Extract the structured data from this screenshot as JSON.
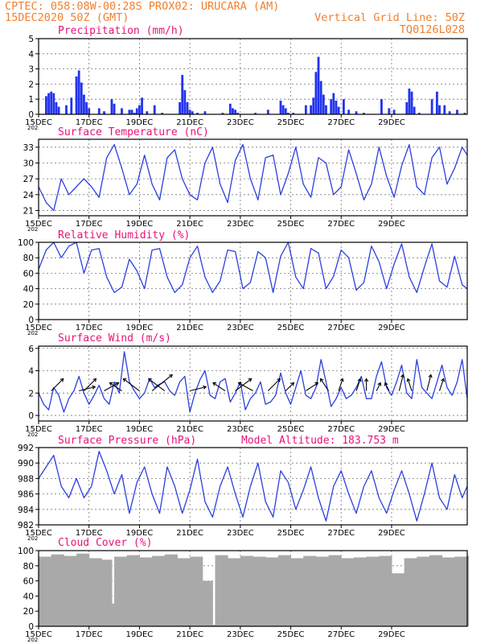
{
  "header": {
    "line1_left": "CPTEC:   058:08W-00:28S   PROX02: URUCARA (AM)",
    "line2_left": "15DEC2020 50Z (GMT)",
    "line2_right": "Vertical Grid Line: 50Z",
    "line3_right": "TQ0126L028"
  },
  "panels": {
    "precip": {
      "title": "Precipitation (mm/h)"
    },
    "temp": {
      "title": "Surface Temperature (nC)"
    },
    "rh": {
      "title": "Relative Humidity (%)"
    },
    "wind": {
      "title": "Surface Wind (m/s)"
    },
    "pressure": {
      "title": "Surface Pressure (hPa)",
      "extra": "Model Altitude: 183.753 m"
    },
    "cloud": {
      "title": "Cloud Cover (%)"
    }
  },
  "x_axis": {
    "tick_labels": [
      "15DEC",
      "17DEC",
      "19DEC",
      "21DEC",
      "23DEC",
      "25DEC",
      "27DEC",
      "29DEC"
    ],
    "partial_year_label": "202"
  },
  "chart_data": [
    {
      "id": "precip",
      "type": "bar",
      "title": "Precipitation (mm/h)",
      "x_unit": "days since 15DEC",
      "ylim": [
        0,
        5
      ],
      "yticks": [
        0,
        1,
        2,
        3,
        4,
        5
      ],
      "x": [
        0.3,
        0.4,
        0.5,
        0.6,
        0.7,
        0.8,
        1.1,
        1.3,
        1.5,
        1.6,
        1.7,
        1.8,
        1.9,
        2.0,
        2.4,
        2.6,
        2.9,
        3.0,
        3.3,
        3.6,
        3.7,
        3.8,
        3.9,
        4.0,
        4.1,
        4.3,
        4.6,
        4.9,
        5.6,
        5.7,
        5.8,
        5.9,
        6.0,
        6.1,
        6.3,
        6.6,
        7.3,
        7.6,
        7.7,
        7.8,
        7.9,
        8.6,
        9.1,
        9.6,
        9.7,
        9.8,
        9.9,
        10.1,
        10.6,
        10.8,
        10.9,
        11.0,
        11.1,
        11.2,
        11.3,
        11.4,
        11.6,
        11.7,
        11.8,
        11.9,
        12.1,
        12.3,
        12.6,
        12.9,
        13.6,
        13.9,
        14.1,
        14.6,
        14.7,
        14.8,
        14.9,
        15.1,
        15.6,
        15.8,
        15.9,
        16.1,
        16.3,
        16.6,
        16.9
      ],
      "values": [
        1.2,
        1.4,
        1.5,
        1.4,
        0.8,
        0.5,
        0.6,
        1.1,
        2.5,
        2.9,
        2.1,
        1.3,
        0.8,
        0.4,
        0.4,
        0.2,
        1.0,
        0.7,
        0.4,
        0.3,
        0.3,
        0.1,
        0.4,
        0.6,
        1.1,
        0.2,
        0.6,
        0.1,
        0.8,
        2.6,
        1.6,
        0.8,
        0.3,
        0.2,
        0.1,
        0.2,
        0.1,
        0.7,
        0.4,
        0.3,
        0.1,
        0.1,
        0.3,
        0.9,
        0.6,
        0.4,
        0.1,
        0.1,
        0.6,
        0.6,
        1.1,
        2.8,
        3.8,
        2.2,
        1.3,
        0.6,
        1.0,
        1.4,
        0.9,
        0.5,
        1.0,
        0.3,
        0.2,
        0.1,
        1.0,
        0.4,
        0.3,
        0.8,
        1.7,
        1.5,
        0.5,
        0.1,
        1.0,
        1.5,
        0.6,
        0.6,
        0.2,
        0.3,
        0.1
      ]
    },
    {
      "id": "temp",
      "type": "line",
      "title": "Surface Temperature (nC)",
      "x_unit": "days since 15DEC",
      "ylim": [
        20,
        34.5
      ],
      "yticks": [
        21,
        24,
        27,
        30,
        33
      ],
      "x": [
        0,
        0.3,
        0.6,
        0.9,
        1.2,
        1.5,
        1.8,
        2.1,
        2.4,
        2.7,
        3.0,
        3.3,
        3.6,
        3.9,
        4.2,
        4.5,
        4.8,
        5.1,
        5.4,
        5.7,
        6.0,
        6.3,
        6.6,
        6.9,
        7.2,
        7.5,
        7.8,
        8.1,
        8.4,
        8.7,
        9.0,
        9.3,
        9.6,
        9.9,
        10.2,
        10.5,
        10.8,
        11.1,
        11.4,
        11.7,
        12.0,
        12.3,
        12.6,
        12.9,
        13.2,
        13.5,
        13.8,
        14.1,
        14.4,
        14.7,
        15.0,
        15.3,
        15.6,
        15.9,
        16.2,
        16.5,
        16.8,
        17.0
      ],
      "values": [
        25.5,
        22.5,
        21.0,
        27.0,
        24.0,
        25.5,
        27.0,
        25.5,
        23.5,
        31.0,
        33.5,
        29.0,
        24.0,
        26.0,
        31.5,
        26.0,
        23.0,
        31.0,
        32.5,
        27.0,
        24.0,
        23.0,
        30.0,
        33.0,
        26.0,
        22.5,
        30.5,
        33.5,
        27.0,
        23.0,
        31.0,
        31.5,
        24.0,
        28.0,
        33.0,
        26.0,
        23.5,
        31.0,
        30.0,
        24.0,
        25.5,
        32.5,
        28.0,
        23.0,
        26.0,
        33.0,
        27.5,
        23.5,
        29.5,
        33.5,
        25.5,
        24.0,
        31.0,
        33.0,
        26.0,
        29.0,
        33.0,
        31.5
      ]
    },
    {
      "id": "rh",
      "type": "line",
      "title": "Relative Humidity (%)",
      "x_unit": "days since 15DEC",
      "ylim": [
        0,
        100
      ],
      "yticks": [
        0,
        20,
        40,
        60,
        80,
        100
      ],
      "x": [
        0,
        0.3,
        0.6,
        0.9,
        1.2,
        1.5,
        1.8,
        2.1,
        2.4,
        2.7,
        3.0,
        3.3,
        3.6,
        3.9,
        4.2,
        4.5,
        4.8,
        5.1,
        5.4,
        5.7,
        6.0,
        6.3,
        6.6,
        6.9,
        7.2,
        7.5,
        7.8,
        8.1,
        8.4,
        8.7,
        9.0,
        9.3,
        9.6,
        9.9,
        10.2,
        10.5,
        10.8,
        11.1,
        11.4,
        11.7,
        12.0,
        12.3,
        12.6,
        12.9,
        13.2,
        13.5,
        13.8,
        14.1,
        14.4,
        14.7,
        15.0,
        15.3,
        15.6,
        15.9,
        16.2,
        16.5,
        16.8,
        17.0
      ],
      "values": [
        65,
        90,
        100,
        80,
        95,
        100,
        60,
        90,
        92,
        55,
        35,
        42,
        78,
        63,
        40,
        90,
        92,
        55,
        35,
        45,
        80,
        95,
        55,
        35,
        50,
        90,
        88,
        40,
        48,
        88,
        80,
        35,
        82,
        100,
        55,
        40,
        92,
        86,
        40,
        56,
        90,
        80,
        38,
        48,
        95,
        75,
        40,
        72,
        98,
        55,
        35,
        68,
        98,
        50,
        42,
        82,
        45,
        40
      ]
    },
    {
      "id": "wind",
      "type": "line",
      "title": "Surface Wind (m/s)",
      "x_unit": "days since 15DEC",
      "ylim": [
        -0.5,
        6.2
      ],
      "yticks": [
        0,
        2,
        4,
        6
      ],
      "x": [
        0,
        0.2,
        0.4,
        0.6,
        0.8,
        1.0,
        1.2,
        1.4,
        1.6,
        1.8,
        2.0,
        2.2,
        2.4,
        2.6,
        2.8,
        3.0,
        3.2,
        3.4,
        3.6,
        3.8,
        4.0,
        4.2,
        4.4,
        4.6,
        4.8,
        5.0,
        5.2,
        5.4,
        5.6,
        5.8,
        6.0,
        6.2,
        6.4,
        6.6,
        6.8,
        7.0,
        7.2,
        7.4,
        7.6,
        7.8,
        8.0,
        8.2,
        8.4,
        8.6,
        8.8,
        9.0,
        9.2,
        9.4,
        9.6,
        9.8,
        10.0,
        10.2,
        10.4,
        10.6,
        10.8,
        11.0,
        11.2,
        11.4,
        11.6,
        11.8,
        12.0,
        12.2,
        12.4,
        12.6,
        12.8,
        13.0,
        13.2,
        13.4,
        13.6,
        13.8,
        14.0,
        14.2,
        14.4,
        14.6,
        14.8,
        15.0,
        15.2,
        15.4,
        15.6,
        15.8,
        16.0,
        16.2,
        16.4,
        16.6,
        16.8,
        17.0
      ],
      "values": [
        2.0,
        1.0,
        0.5,
        2.5,
        1.8,
        0.3,
        1.5,
        2.2,
        3.5,
        2.0,
        1.0,
        1.8,
        2.7,
        1.5,
        1.0,
        3.0,
        2.0,
        5.7,
        3.0,
        2.2,
        1.5,
        2.0,
        3.3,
        2.5,
        2.8,
        3.0,
        2.2,
        1.8,
        3.0,
        3.5,
        0.3,
        2.0,
        3.2,
        4.0,
        1.8,
        1.5,
        3.0,
        3.3,
        1.2,
        2.0,
        3.0,
        0.5,
        1.5,
        2.0,
        3.0,
        1.0,
        1.2,
        1.8,
        3.8,
        2.0,
        1.0,
        2.5,
        4.0,
        1.8,
        1.5,
        2.5,
        5.0,
        3.0,
        0.8,
        1.5,
        2.5,
        1.5,
        1.8,
        2.5,
        3.5,
        1.5,
        1.5,
        3.5,
        4.8,
        2.5,
        1.8,
        3.0,
        4.5,
        2.0,
        1.5,
        5.0,
        2.5,
        2.0,
        1.5,
        3.0,
        4.5,
        2.5,
        1.8,
        3.0,
        5.0,
        1.5
      ]
    },
    {
      "id": "pressure",
      "type": "line",
      "title": "Surface Pressure (hPa)",
      "x_unit": "days since 15DEC",
      "ylim": [
        982,
        992
      ],
      "yticks": [
        982,
        984,
        986,
        988,
        990,
        992
      ],
      "x": [
        0,
        0.3,
        0.6,
        0.9,
        1.2,
        1.5,
        1.8,
        2.1,
        2.4,
        2.7,
        3.0,
        3.3,
        3.6,
        3.9,
        4.2,
        4.5,
        4.8,
        5.1,
        5.4,
        5.7,
        6.0,
        6.3,
        6.6,
        6.9,
        7.2,
        7.5,
        7.8,
        8.1,
        8.4,
        8.7,
        9.0,
        9.3,
        9.6,
        9.9,
        10.2,
        10.5,
        10.8,
        11.1,
        11.4,
        11.7,
        12.0,
        12.3,
        12.6,
        12.9,
        13.2,
        13.5,
        13.8,
        14.1,
        14.4,
        14.7,
        15.0,
        15.3,
        15.6,
        15.9,
        16.2,
        16.5,
        16.8,
        17.0
      ],
      "values": [
        988,
        989.5,
        991,
        987,
        985.5,
        988,
        985.5,
        987,
        991.5,
        989,
        986,
        988.5,
        983.5,
        987.5,
        989.5,
        986,
        983.5,
        989.5,
        987,
        983.5,
        986.5,
        990.5,
        985,
        983,
        987,
        989.5,
        986,
        983,
        987,
        990,
        985,
        983,
        989,
        987.5,
        984,
        986.5,
        989.5,
        985.5,
        982.5,
        987,
        989,
        986,
        983.5,
        987,
        989,
        985.5,
        983.5,
        986.5,
        989,
        986,
        982.5,
        986,
        990,
        985.5,
        984,
        988.5,
        985.5,
        987
      ]
    },
    {
      "id": "cloud",
      "type": "bar",
      "title": "Cloud Cover (%)",
      "x_unit": "days since 15DEC",
      "ylim": [
        0,
        100
      ],
      "yticks": [
        0,
        20,
        40,
        60,
        80,
        100
      ],
      "x": [
        0,
        0.5,
        1.0,
        1.5,
        2.0,
        2.5,
        2.9,
        3.0,
        3.5,
        4.0,
        4.5,
        5.0,
        5.5,
        6.0,
        6.5,
        6.9,
        7.0,
        7.5,
        8.0,
        8.5,
        9.0,
        9.5,
        10.0,
        10.5,
        11.0,
        11.5,
        12.0,
        12.5,
        13.0,
        13.5,
        14.0,
        14.5,
        15.0,
        15.5,
        16.0,
        16.5,
        17.0
      ],
      "values": [
        92,
        95,
        93,
        96,
        90,
        88,
        30,
        92,
        94,
        91,
        93,
        95,
        90,
        92,
        60,
        2,
        94,
        90,
        93,
        92,
        91,
        94,
        90,
        93,
        92,
        94,
        90,
        91,
        92,
        93,
        70,
        90,
        92,
        94,
        91,
        92,
        93
      ]
    }
  ],
  "wind_vectors": {
    "x_days": [
      0.5,
      1.6,
      1.8,
      2.6,
      3.3,
      4.0,
      4.5,
      5.0,
      6.0,
      7.4,
      7.8,
      8.5,
      9.1,
      9.8,
      10.6,
      11.5,
      11.9,
      12.6,
      13.0,
      13.4,
      13.9,
      14.3,
      14.8,
      15.4,
      15.9
    ],
    "u": [
      1.5,
      2.0,
      1.5,
      1.8,
      -1.5,
      -2.0,
      2.5,
      -2.0,
      2.0,
      -1.5,
      2.0,
      -1.8,
      1.5,
      1.0,
      1.5,
      -1.0,
      0.5,
      0.5,
      0.0,
      0.5,
      -0.5,
      0.5,
      -0.5,
      0.5,
      0.5
    ],
    "v": [
      1.5,
      0.5,
      1.5,
      1.0,
      1.0,
      1.5,
      2.0,
      1.5,
      0.5,
      1.0,
      1.5,
      1.0,
      1.5,
      1.0,
      1.0,
      1.5,
      1.5,
      1.5,
      1.5,
      1.0,
      1.0,
      2.0,
      1.5,
      2.0,
      1.5
    ]
  }
}
